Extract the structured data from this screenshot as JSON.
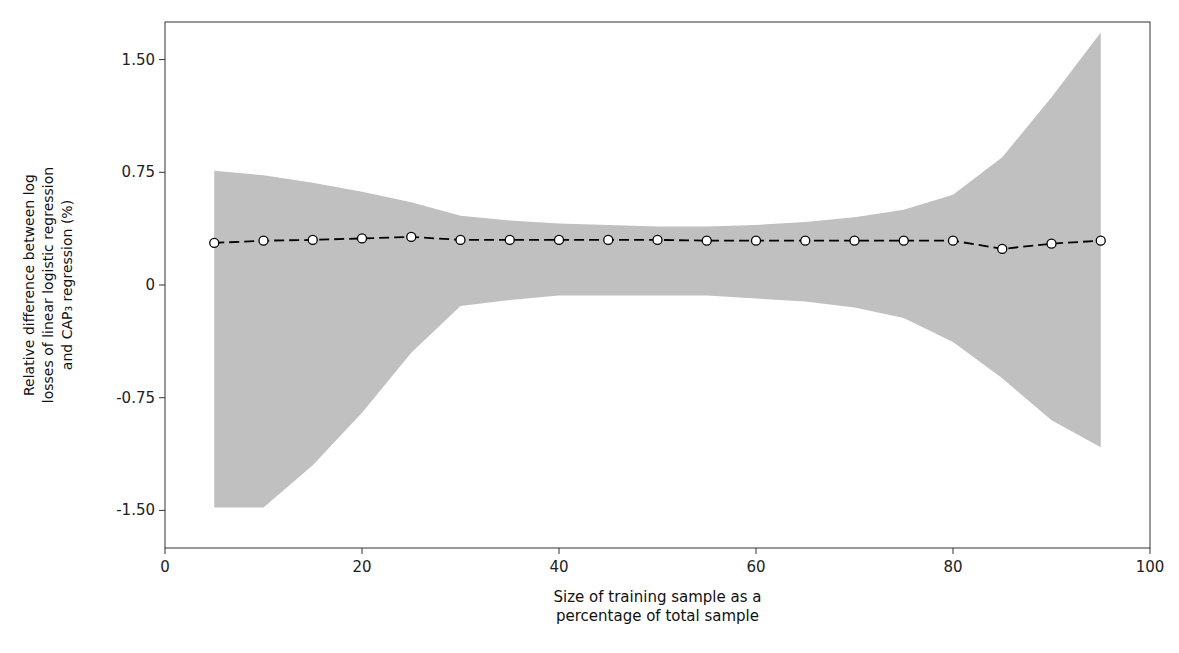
{
  "chart_data": {
    "type": "line",
    "xlabel": "Size of training sample as a\npercentage of total sample",
    "ylabel": "Relative difference between log\nlosses of linear logistic regression\nand CAP₃ regression (%)",
    "x": [
      5,
      10,
      15,
      20,
      25,
      30,
      35,
      40,
      45,
      50,
      55,
      60,
      65,
      70,
      75,
      80,
      85,
      90,
      95
    ],
    "series": [
      {
        "type": "area",
        "color": "#c0c0c0",
        "upper": [
          0.76,
          0.73,
          0.68,
          0.62,
          0.55,
          0.46,
          0.43,
          0.41,
          0.4,
          0.39,
          0.39,
          0.4,
          0.42,
          0.45,
          0.5,
          0.6,
          0.85,
          1.25,
          1.68
        ],
        "lower": [
          -1.48,
          -1.48,
          -1.2,
          -0.85,
          -0.45,
          -0.14,
          -0.1,
          -0.07,
          -0.07,
          -0.07,
          -0.07,
          -0.09,
          -0.11,
          -0.15,
          -0.22,
          -0.38,
          -0.62,
          -0.9,
          -1.08
        ]
      },
      {
        "type": "line",
        "color": "#000000",
        "marker": "circle",
        "line_style": "dashed",
        "values": [
          0.28,
          0.295,
          0.3,
          0.31,
          0.32,
          0.3,
          0.3,
          0.3,
          0.3,
          0.3,
          0.295,
          0.295,
          0.295,
          0.295,
          0.295,
          0.295,
          0.24,
          0.275,
          0.295
        ]
      }
    ],
    "xlim": [
      0,
      100
    ],
    "ylim": [
      -1.75,
      1.75
    ],
    "xticks": [
      0,
      20,
      40,
      60,
      80,
      100
    ],
    "yticks": [
      {
        "value": -1.5,
        "label": "-1.50"
      },
      -0.75,
      0,
      0.75,
      {
        "value": 1.5,
        "label": "1.50"
      }
    ],
    "grid": false
  }
}
